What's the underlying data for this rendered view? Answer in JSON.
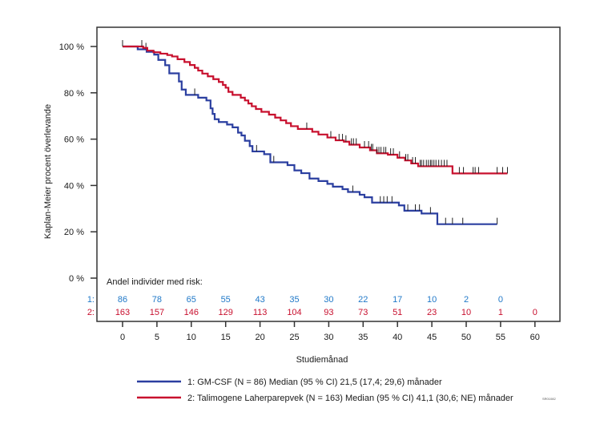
{
  "chart_data": {
    "type": "line",
    "subtype": "kaplan-meier",
    "title": "",
    "xlabel": "Studiemånad",
    "ylabel": "Kaplan-Meier procent överlevande",
    "xlim": [
      -3,
      64
    ],
    "ylim": [
      0,
      100
    ],
    "x_ticks": [
      0,
      5,
      10,
      15,
      20,
      25,
      30,
      35,
      40,
      45,
      50,
      55,
      60
    ],
    "y_ticks": [
      {
        "value": 0,
        "label": "0 %"
      },
      {
        "value": 20,
        "label": "20 %"
      },
      {
        "value": 40,
        "label": "40 %"
      },
      {
        "value": 60,
        "label": "60 %"
      },
      {
        "value": 80,
        "label": "80 %"
      },
      {
        "value": 100,
        "label": "100 %"
      }
    ],
    "grid": false,
    "series": [
      {
        "name": "1: GM-CSF (N = 86) Median (95 % CI) 21,5 (17,4; 29,6) månader",
        "id": "1",
        "color": "#2b3fa0",
        "steps": [
          [
            0,
            100
          ],
          [
            2.2,
            98.8
          ],
          [
            3.5,
            97.7
          ],
          [
            4.6,
            96.5
          ],
          [
            5.2,
            94.2
          ],
          [
            6.2,
            91.9
          ],
          [
            6.8,
            88.4
          ],
          [
            8.2,
            84.9
          ],
          [
            8.6,
            81.4
          ],
          [
            9.2,
            79.1
          ],
          [
            11.0,
            77.9
          ],
          [
            12.2,
            76.7
          ],
          [
            12.8,
            73.3
          ],
          [
            13.1,
            70.9
          ],
          [
            13.4,
            68.6
          ],
          [
            14.0,
            67.4
          ],
          [
            15.2,
            66.3
          ],
          [
            16.0,
            65.1
          ],
          [
            16.8,
            62.8
          ],
          [
            17.3,
            61.6
          ],
          [
            17.8,
            59.3
          ],
          [
            18.5,
            57.0
          ],
          [
            18.9,
            54.7
          ],
          [
            20.6,
            53.5
          ],
          [
            21.5,
            50.0
          ],
          [
            24.0,
            48.8
          ],
          [
            25.0,
            46.5
          ],
          [
            26.0,
            45.3
          ],
          [
            27.2,
            43.0
          ],
          [
            28.5,
            41.9
          ],
          [
            29.8,
            40.7
          ],
          [
            30.6,
            39.5
          ],
          [
            32.0,
            38.4
          ],
          [
            32.8,
            37.2
          ],
          [
            34.5,
            36.0
          ],
          [
            35.2,
            34.9
          ],
          [
            36.3,
            32.6
          ],
          [
            40.2,
            31.4
          ],
          [
            41.0,
            29.1
          ],
          [
            43.5,
            27.9
          ],
          [
            45.8,
            23.3
          ],
          [
            54.5,
            23.3
          ]
        ],
        "censor_x": [
          3.4,
          10.5,
          19.5,
          22.0,
          33.5,
          37.5,
          38.0,
          38.5,
          39.2,
          41.5,
          42.6,
          43.2,
          44.8,
          47.0,
          48.0,
          49.5,
          54.5
        ]
      },
      {
        "name": "2: Talimogene Laherparepvek (N = 163) Median (95 % CI) 41,1 (30,6; NE) månader",
        "id": "2",
        "color": "#c8102e",
        "steps": [
          [
            0,
            100
          ],
          [
            3.0,
            99.4
          ],
          [
            3.6,
            98.2
          ],
          [
            4.5,
            97.5
          ],
          [
            5.5,
            96.9
          ],
          [
            6.5,
            96.3
          ],
          [
            7.2,
            95.7
          ],
          [
            8.0,
            94.5
          ],
          [
            9.0,
            93.3
          ],
          [
            9.8,
            92.0
          ],
          [
            10.5,
            90.8
          ],
          [
            11.0,
            89.6
          ],
          [
            11.6,
            88.3
          ],
          [
            12.4,
            87.1
          ],
          [
            13.2,
            85.9
          ],
          [
            14.0,
            84.7
          ],
          [
            14.6,
            83.4
          ],
          [
            15.0,
            82.2
          ],
          [
            15.4,
            80.4
          ],
          [
            16.0,
            79.1
          ],
          [
            17.2,
            77.9
          ],
          [
            17.8,
            76.7
          ],
          [
            18.3,
            75.4
          ],
          [
            18.8,
            74.2
          ],
          [
            19.4,
            73.0
          ],
          [
            20.2,
            71.8
          ],
          [
            21.3,
            70.6
          ],
          [
            22.2,
            69.3
          ],
          [
            23.0,
            68.1
          ],
          [
            23.8,
            66.9
          ],
          [
            24.5,
            65.6
          ],
          [
            25.5,
            64.4
          ],
          [
            27.6,
            63.2
          ],
          [
            28.5,
            62.0
          ],
          [
            29.8,
            60.7
          ],
          [
            31.0,
            59.5
          ],
          [
            32.2,
            58.9
          ],
          [
            33.0,
            57.6
          ],
          [
            34.5,
            56.4
          ],
          [
            36.0,
            55.2
          ],
          [
            37.0,
            53.9
          ],
          [
            38.6,
            53.3
          ],
          [
            40.0,
            52.0
          ],
          [
            41.1,
            50.8
          ],
          [
            42.0,
            49.5
          ],
          [
            43.0,
            48.3
          ],
          [
            48.0,
            45.2
          ],
          [
            56.0,
            45.2
          ]
        ],
        "censor_x": [
          0,
          2.8,
          26.8,
          30.3,
          31.5,
          32.0,
          32.5,
          33.3,
          33.6,
          34.0,
          35.2,
          35.8,
          36.2,
          36.4,
          37.0,
          37.3,
          37.6,
          38.0,
          38.3,
          39.0,
          39.4,
          40.3,
          41.2,
          41.5,
          42.2,
          42.6,
          43.3,
          43.5,
          43.8,
          44.2,
          44.5,
          44.8,
          45.0,
          45.3,
          45.6,
          46.0,
          46.4,
          46.8,
          47.2,
          49.0,
          49.6,
          51.0,
          51.3,
          51.8,
          54.5,
          55.3,
          56.0
        ]
      }
    ],
    "risk_table": {
      "title": "Andel individer med risk:",
      "rows": [
        {
          "label": "1:",
          "color": "#1f78c8",
          "values": [
            "86",
            "78",
            "65",
            "55",
            "43",
            "35",
            "30",
            "22",
            "17",
            "10",
            "2",
            "0"
          ]
        },
        {
          "label": "2:",
          "color": "#c8102e",
          "values": [
            "163",
            "157",
            "146",
            "129",
            "113",
            "104",
            "93",
            "73",
            "51",
            "23",
            "10",
            "1",
            "0"
          ]
        }
      ]
    },
    "legend": {
      "placement": "bottom",
      "entries": [
        {
          "label": "1: GM-CSF (N = 86) Median (95 % CI) 21,5 (17,4; 29,6) månader",
          "color": "#2b3fa0"
        },
        {
          "label": "2: Talimogene Laherparepvek (N = 163) Median (95 % CI) 41,1 (30,6; NE) månader",
          "color": "#c8102e"
        }
      ]
    },
    "annotation_code": "SR01082"
  }
}
